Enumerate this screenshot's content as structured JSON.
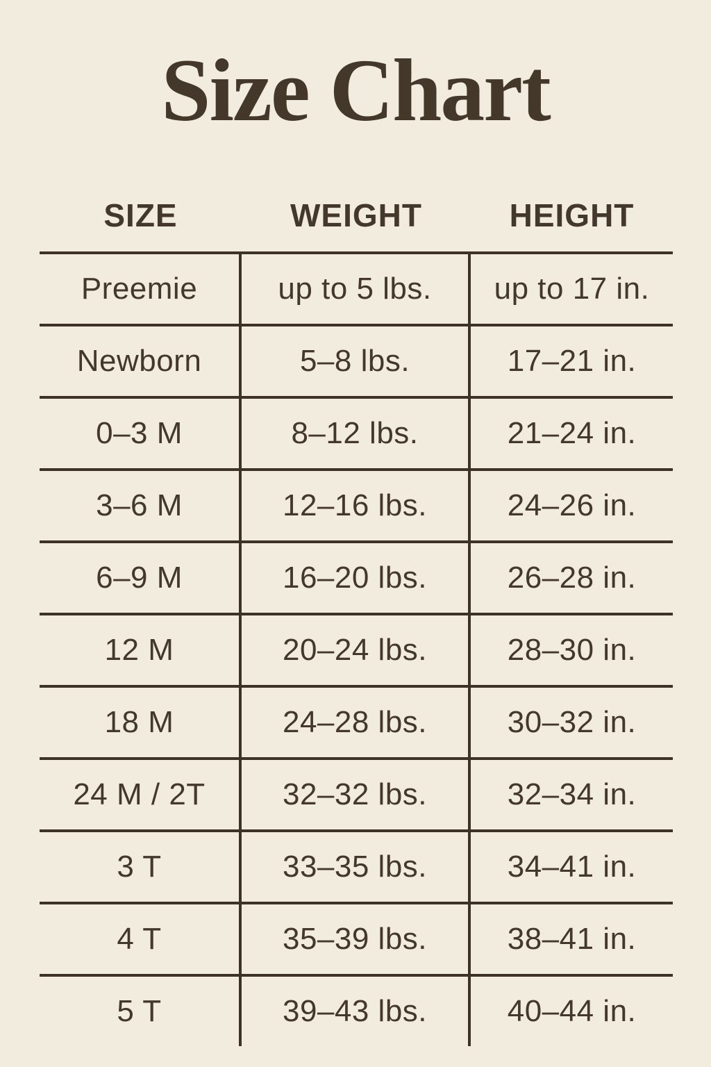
{
  "title": "Size Chart",
  "colors": {
    "background": "#f2ecdf",
    "ink": "#43382a",
    "line": "#3c3326"
  },
  "chart_data": {
    "type": "table",
    "title": "Size Chart",
    "columns": [
      "SIZE",
      "WEIGHT",
      "HEIGHT"
    ],
    "rows": [
      [
        "Preemie",
        "up to 5 lbs.",
        "up to 17 in."
      ],
      [
        "Newborn",
        "5–8 lbs.",
        "17–21 in."
      ],
      [
        "0–3 M",
        "8–12 lbs.",
        "21–24 in."
      ],
      [
        "3–6 M",
        "12–16 lbs.",
        "24–26 in."
      ],
      [
        "6–9 M",
        "16–20 lbs.",
        "26–28 in."
      ],
      [
        "12 M",
        "20–24 lbs.",
        "28–30 in."
      ],
      [
        "18 M",
        "24–28 lbs.",
        "30–32 in."
      ],
      [
        "24 M / 2T",
        "32–32 lbs.",
        "32–34 in."
      ],
      [
        "3 T",
        "33–35 lbs.",
        "34–41 in."
      ],
      [
        "4 T",
        "35–39 lbs.",
        "38–41 in."
      ],
      [
        "5 T",
        "39–43 lbs.",
        "40–44 in."
      ]
    ]
  }
}
